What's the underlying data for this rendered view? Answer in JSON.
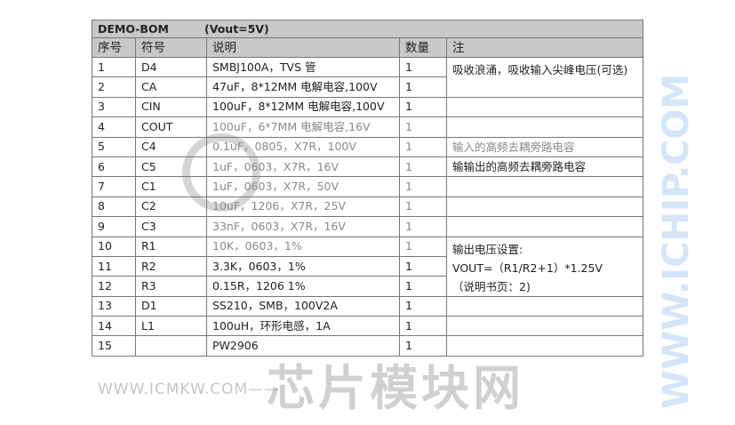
{
  "title": {
    "name": "DEMO-BOM",
    "vout": "(Vout=5V)"
  },
  "headers": [
    "序号",
    "符号",
    "说明",
    "数量",
    "注"
  ],
  "rows": [
    {
      "no": "1",
      "ref": "D4",
      "desc": "SMBJ100A，TVS 管",
      "qty": "1"
    },
    {
      "no": "2",
      "ref": "CA",
      "desc": "47uF，8*12MM 电解电容,100V",
      "qty": "1"
    },
    {
      "no": "3",
      "ref": "CIN",
      "desc": "100uF，8*12MM 电解电容,100V",
      "qty": "1"
    },
    {
      "no": "4",
      "ref": "COUT",
      "desc": "100uF，6*7MM 电解电容,16V",
      "qty": "1"
    },
    {
      "no": "5",
      "ref": "C4",
      "desc": "0.1uF，0805，X7R，100V",
      "qty": "1"
    },
    {
      "no": "6",
      "ref": "C5",
      "desc": "1uF，0603，X7R，16V",
      "qty": "1"
    },
    {
      "no": "7",
      "ref": "C1",
      "desc": "1uF，0603，X7R，50V",
      "qty": "1"
    },
    {
      "no": "8",
      "ref": "C2",
      "desc": "10uF，1206，X7R，25V",
      "qty": "1"
    },
    {
      "no": "9",
      "ref": "C3",
      "desc": "33nF，0603，X7R，16V",
      "qty": "1"
    },
    {
      "no": "10",
      "ref": "R1",
      "desc": "10K，0603，1%",
      "qty": "1"
    },
    {
      "no": "11",
      "ref": "R2",
      "desc": "3.3K，0603，1%",
      "qty": "1"
    },
    {
      "no": "12",
      "ref": "R3",
      "desc": "0.15R，1206 1%",
      "qty": "1"
    },
    {
      "no": "13",
      "ref": "D1",
      "desc": "SS210，SMB，100V2A",
      "qty": "1"
    },
    {
      "no": "14",
      "ref": "L1",
      "desc": "100uH，环形电感，1A",
      "qty": "1"
    },
    {
      "no": "15",
      "ref": "",
      "desc": "PW2906",
      "qty": "1"
    }
  ],
  "notes": {
    "n1": "吸收浪涌，吸收输入尖峰电压(可选)",
    "n5": "输入的高频去耦旁路电容",
    "n6": "输输出的高频去耦旁路电容",
    "n10_line1": "输出电压设置:",
    "n10_line2": "VOUT=（R1/R2+1）*1.25V",
    "n10_line3": "（说明书页：2)"
  },
  "watermark": {
    "cn": "芯片模块网",
    "url": "WWW.ICMKW.COM——",
    "blue": "WWW.ICHIP.COM"
  }
}
